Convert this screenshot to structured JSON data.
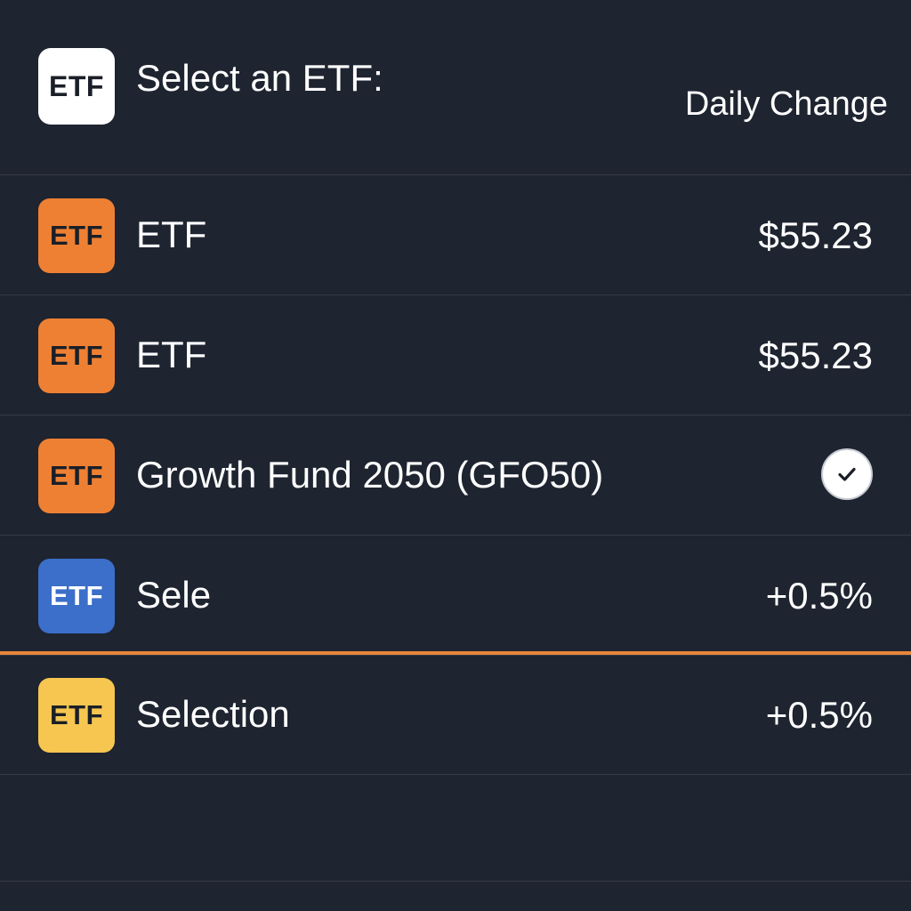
{
  "header": {
    "icon_label": "ETF",
    "title": "Select an ETF:",
    "column_label": "Daily Change"
  },
  "rows": [
    {
      "badge": "ETF",
      "badge_color": "#ee8033",
      "name": "ETF",
      "value": "$55.23",
      "selected": false
    },
    {
      "badge": "ETF",
      "badge_color": "#ee8033",
      "name": "ETF",
      "value": "$55.23",
      "selected": false
    },
    {
      "badge": "ETF",
      "badge_color": "#ee8033",
      "name": "Growth Fund 2050 (GFO50)",
      "value": "",
      "selected": true
    },
    {
      "badge": "ETF",
      "badge_color": "#3b6fc9",
      "name": "Sele",
      "value": "+0.5%",
      "selected": false
    },
    {
      "badge": "ETF",
      "badge_color": "#f6c650",
      "name": "Selection",
      "value": "+0.5%",
      "selected": false
    }
  ],
  "colors": {
    "background": "#1e2430",
    "divider": "#343b48",
    "accent": "#e8863a",
    "text": "#ffffff"
  }
}
